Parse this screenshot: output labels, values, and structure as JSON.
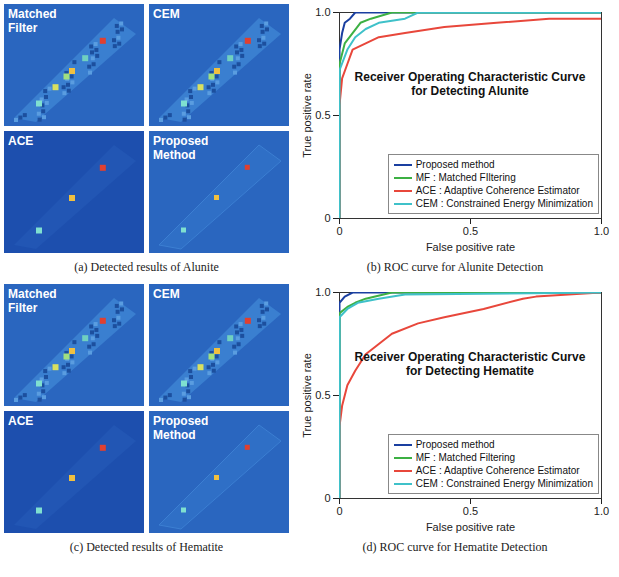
{
  "panels": [
    {
      "type": "image",
      "caption": "(a) Detected results of Alunite",
      "tiles": [
        "Matched Filter",
        "CEM",
        "ACE",
        "Proposed Method"
      ]
    },
    {
      "type": "image",
      "caption": "(c) Detected results of Hematite",
      "tiles": [
        "Matched Filter",
        "CEM",
        "ACE",
        "Proposed Method"
      ]
    }
  ],
  "chart_data": [
    {
      "type": "line",
      "title": "Receiver Operating Characteristic Curve for Detecting Alunite",
      "caption": "(b) ROC curve for Alunite Detection",
      "x_label": "False positive rate",
      "y_label": "True positive rate",
      "xlim": [
        0,
        1
      ],
      "ylim": [
        0,
        1
      ],
      "xticks": [
        0,
        0.5,
        {
          "value": 1,
          "label": "1.0"
        }
      ],
      "yticks": [
        0,
        0.5,
        {
          "value": 1,
          "label": "1.0"
        }
      ],
      "legend": "lower right",
      "series": [
        {
          "name": "Proposed method",
          "color": "#1a3fa0",
          "x": [
            0,
            0,
            0.01,
            0.02,
            0.04,
            0.06,
            1
          ],
          "values": [
            0,
            0.82,
            0.9,
            0.95,
            0.97,
            1,
            1
          ]
        },
        {
          "name": "MF : Matched FIltering",
          "color": "#3cb043",
          "x": [
            0,
            0,
            0.02,
            0.05,
            0.08,
            0.12,
            0.2,
            1
          ],
          "values": [
            0,
            0.75,
            0.85,
            0.9,
            0.95,
            0.97,
            1,
            1
          ]
        },
        {
          "name": "ACE : Adaptive Coherence Estimator",
          "color": "#e8473b",
          "x": [
            0,
            0,
            0.01,
            0.03,
            0.05,
            0.1,
            0.15,
            0.25,
            0.4,
            0.6,
            0.8,
            1
          ],
          "values": [
            0,
            0.55,
            0.68,
            0.75,
            0.82,
            0.85,
            0.88,
            0.9,
            0.93,
            0.95,
            0.97,
            0.97
          ]
        },
        {
          "name": "CEM : Constrained Energy Minimization",
          "color": "#3fc1c9",
          "x": [
            0,
            0,
            0.03,
            0.06,
            0.1,
            0.15,
            0.25,
            0.3,
            1
          ],
          "values": [
            0,
            0.72,
            0.82,
            0.88,
            0.92,
            0.95,
            0.97,
            1,
            1
          ]
        }
      ]
    },
    {
      "type": "line",
      "title": "Receiver Operating Characteristic Curve for Detecting Hematite",
      "caption": "(d) ROC curve for Hematite Detection",
      "x_label": "False positive rate",
      "y_label": "True positive rate",
      "xlim": [
        0,
        1
      ],
      "ylim": [
        0,
        1
      ],
      "xticks": [
        0,
        0.5,
        {
          "value": 1,
          "label": "1.0"
        }
      ],
      "yticks": [
        0,
        0.5,
        {
          "value": 1,
          "label": "1.0"
        }
      ],
      "legend": "lower right",
      "series": [
        {
          "name": "Proposed method",
          "color": "#1a3fa0",
          "x": [
            0,
            0,
            0.02,
            0.05,
            1
          ],
          "values": [
            0,
            0.95,
            0.98,
            1,
            1
          ]
        },
        {
          "name": "MF : Matched Filtering",
          "color": "#3cb043",
          "x": [
            0,
            0,
            0.03,
            0.06,
            0.1,
            0.2,
            1
          ],
          "values": [
            0,
            0.9,
            0.93,
            0.95,
            0.97,
            1,
            1
          ]
        },
        {
          "name": "ACE : Adaptive Coherence Estimator",
          "color": "#e8473b",
          "x": [
            0,
            0,
            0.01,
            0.03,
            0.06,
            0.1,
            0.15,
            0.2,
            0.3,
            0.4,
            0.55,
            0.7,
            0.75,
            1
          ],
          "values": [
            0,
            0.35,
            0.45,
            0.55,
            0.62,
            0.7,
            0.75,
            0.8,
            0.85,
            0.88,
            0.92,
            0.97,
            0.98,
            1
          ]
        },
        {
          "name": "CEM : Constrained Energy Minimization",
          "color": "#3fc1c9",
          "x": [
            0,
            0,
            0.03,
            0.07,
            0.15,
            0.25,
            1
          ],
          "values": [
            0,
            0.88,
            0.92,
            0.95,
            0.97,
            0.99,
            1
          ]
        }
      ]
    }
  ]
}
